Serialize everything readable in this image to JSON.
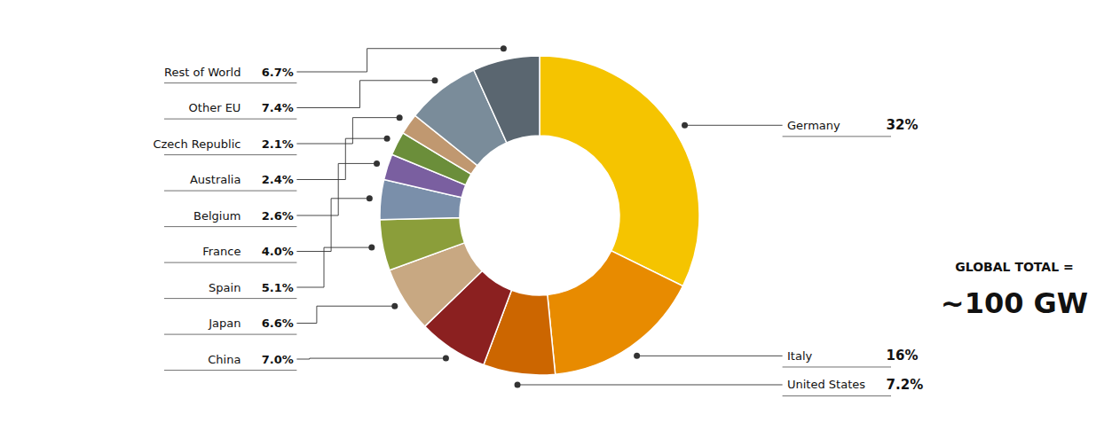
{
  "chart_data": {
    "type": "donut",
    "categories": [
      "Germany",
      "Italy",
      "United States",
      "China",
      "Japan",
      "Spain",
      "France",
      "Belgium",
      "Australia",
      "Czech Republic",
      "Other EU",
      "Rest of World"
    ],
    "values": [
      32.0,
      16.0,
      7.2,
      7.0,
      6.6,
      5.1,
      4.0,
      2.6,
      2.4,
      2.1,
      7.4,
      6.7
    ],
    "value_labels": [
      "32%",
      "16%",
      "7.2%",
      "7.0%",
      "6.6%",
      "5.1%",
      "4.0%",
      "2.6%",
      "2.4%",
      "2.1%",
      "7.4%",
      "6.7%"
    ],
    "colors": [
      "#F5C400",
      "#E88B00",
      "#CC6600",
      "#8B2020",
      "#C8A882",
      "#8B9E3A",
      "#7A8FAA",
      "#7A5FA0",
      "#6B8E3A",
      "#C09870",
      "#7A8C9A",
      "#5A6670"
    ],
    "annotations": [
      "GLOBAL TOTAL =",
      "~100 GW"
    ]
  }
}
